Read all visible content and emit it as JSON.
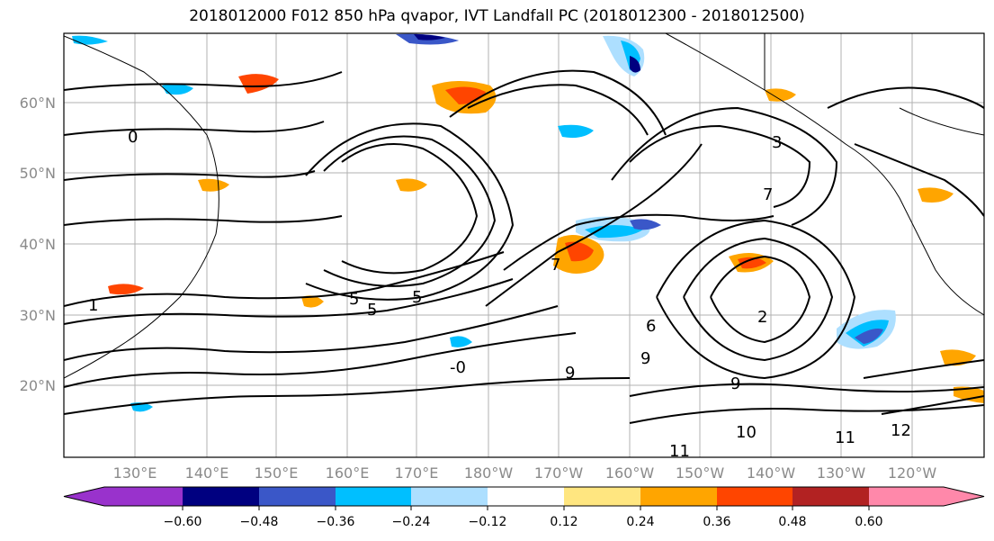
{
  "title": "2018012000 F012 850 hPa qvapor, IVT Landfall PC (2018012300 - 2018012500)",
  "map": {
    "lat_labels": [
      "60°N",
      "50°N",
      "40°N",
      "30°N",
      "20°N"
    ],
    "lon_labels": [
      "130°E",
      "140°E",
      "150°E",
      "160°E",
      "170°E",
      "180°W",
      "170°W",
      "160°W",
      "150°W",
      "140°W",
      "130°W",
      "120°W"
    ],
    "contour_labels": [
      "5",
      "5",
      "5",
      "7",
      "6",
      "9",
      "9",
      "11",
      "11",
      "10",
      "12",
      "3",
      "2",
      "1",
      "0",
      "-0",
      "9",
      "7"
    ]
  },
  "colorbar": {
    "ticks": [
      "−0.60",
      "−0.48",
      "−0.36",
      "−0.24",
      "−0.12",
      "0.12",
      "0.24",
      "0.36",
      "0.48",
      "0.60"
    ],
    "colors": [
      "#9932CC",
      "#000080",
      "#3A57C8",
      "#00BFFF",
      "#ADDFFF",
      "#FFFFFF",
      "#FFE680",
      "#FFA500",
      "#FF4500",
      "#B22222",
      "#FF88AA"
    ]
  }
}
